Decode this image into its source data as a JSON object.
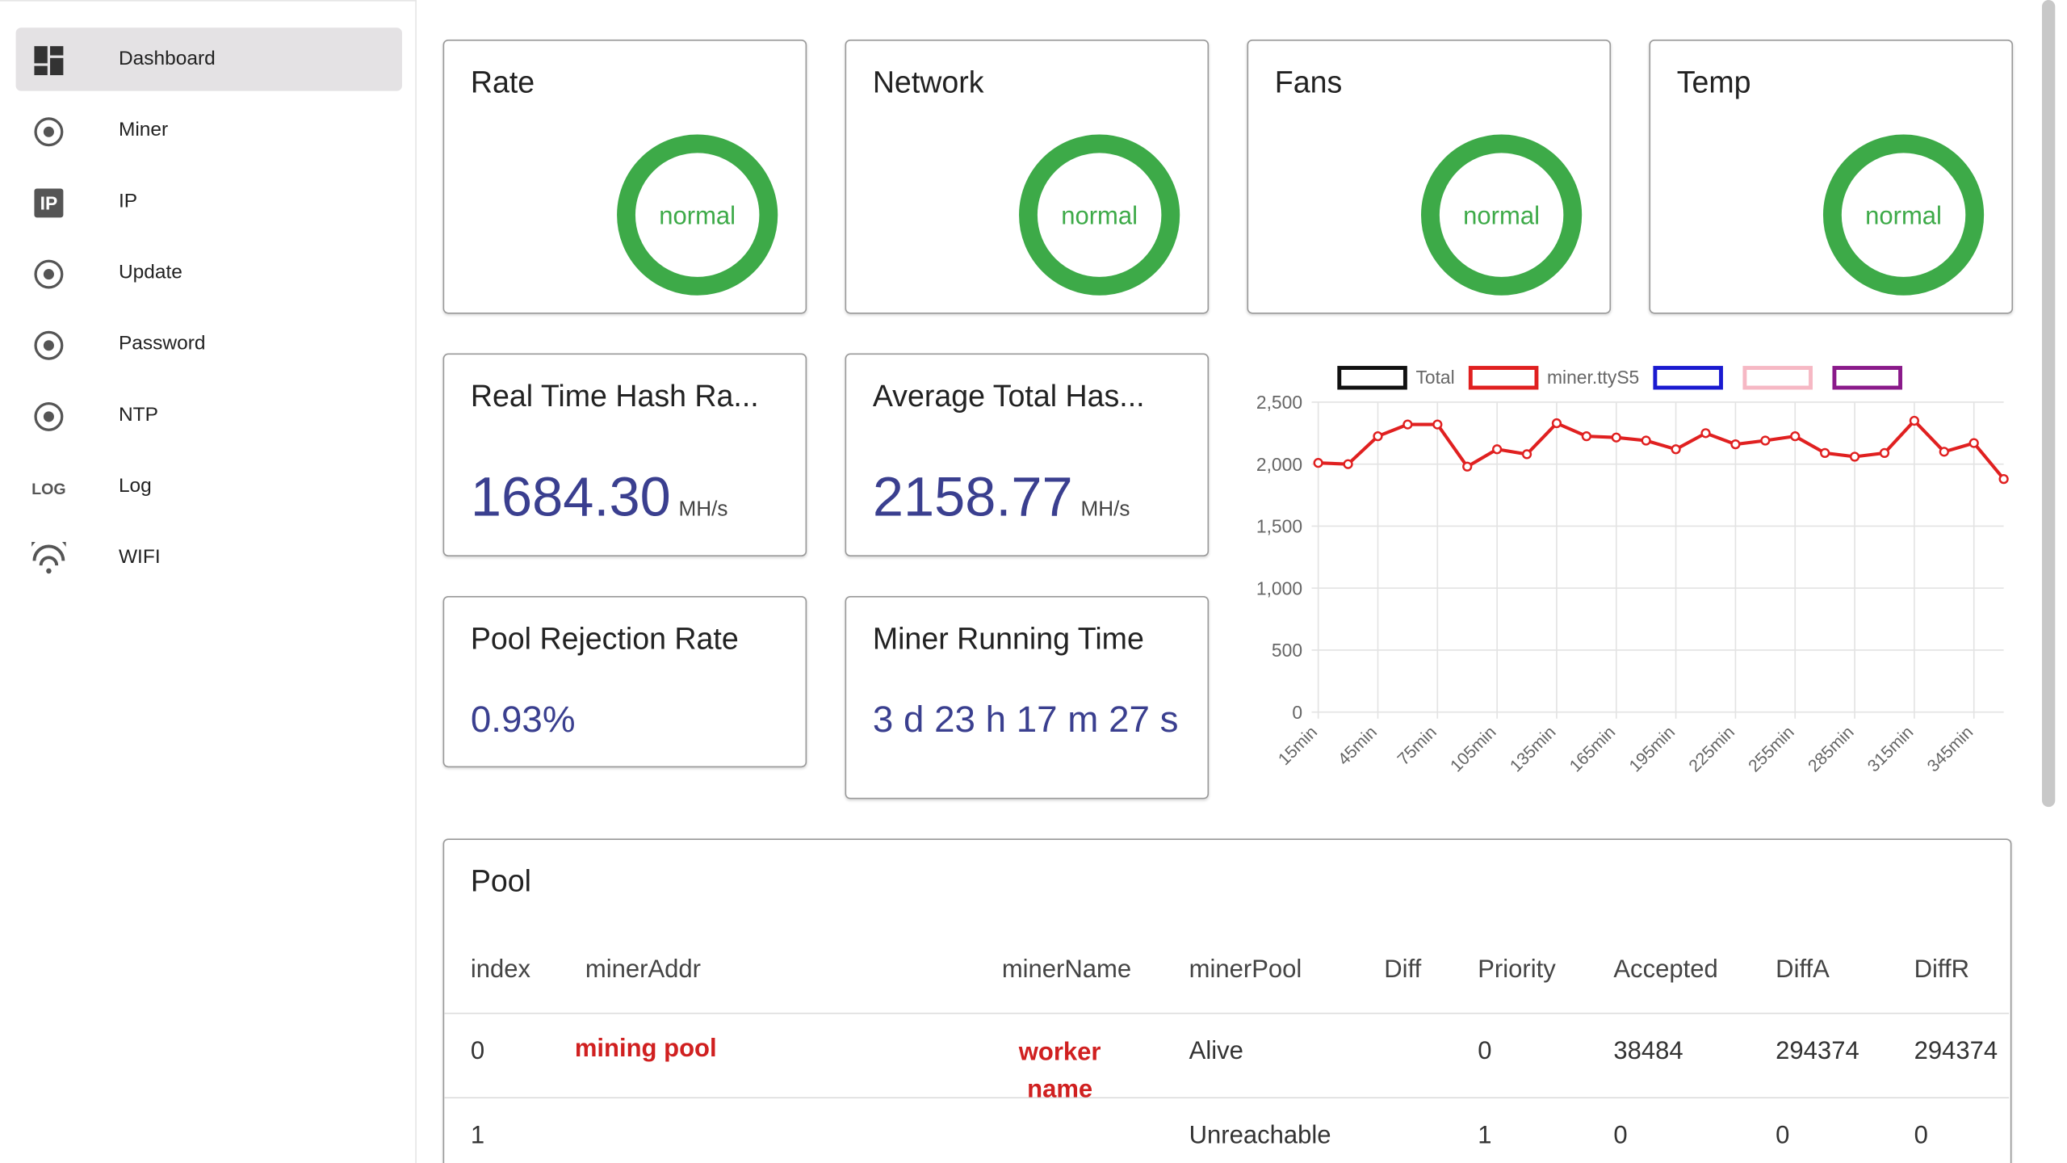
{
  "sidebar": {
    "items": [
      {
        "label": "Dashboard"
      },
      {
        "label": "Miner"
      },
      {
        "label": "IP",
        "icon_text": "IP"
      },
      {
        "label": "Update"
      },
      {
        "label": "Password"
      },
      {
        "label": "NTP"
      },
      {
        "label": "Log",
        "icon_text": "LOG"
      },
      {
        "label": "WIFI"
      }
    ]
  },
  "status_cards": [
    {
      "title": "Rate",
      "status": "normal"
    },
    {
      "title": "Network",
      "status": "normal"
    },
    {
      "title": "Fans",
      "status": "normal"
    },
    {
      "title": "Temp",
      "status": "normal"
    }
  ],
  "stat_cards": [
    {
      "title": "Real Time Hash Ra...",
      "value": "1684.30",
      "unit": "MH/s"
    },
    {
      "title": "Average Total Has...",
      "value": "2158.77",
      "unit": "MH/s"
    },
    {
      "title": "Pool Rejection Rate",
      "value": "0.93%"
    },
    {
      "title": "Miner Running Time",
      "value": "3 d 23 h 17 m 27 s"
    }
  ],
  "chart_data": {
    "type": "line",
    "legend": [
      {
        "name": "Total",
        "color": "#111111"
      },
      {
        "name": "miner.ttyS5",
        "color": "#e02020"
      },
      {
        "color": "#1a1ad0"
      },
      {
        "color": "#f6b8c4"
      },
      {
        "color": "#8a1a8a"
      }
    ],
    "categories": [
      "15min",
      null,
      "45min",
      null,
      "75min",
      null,
      "105min",
      null,
      "135min",
      null,
      "165min",
      null,
      "195min",
      null,
      "225min",
      null,
      "255min",
      null,
      "285min",
      null,
      "315min",
      null,
      "345min",
      null
    ],
    "series": [
      {
        "name": "miner.ttyS5",
        "color": "#e02020",
        "values": [
          2010,
          2000,
          2225,
          2320,
          2320,
          1980,
          2120,
          2080,
          2330,
          2225,
          2215,
          2190,
          2120,
          2250,
          2160,
          2190,
          2225,
          2090,
          2060,
          2090,
          2350,
          2100,
          2170,
          1880
        ]
      }
    ],
    "ylim": [
      0,
      2500
    ],
    "yticks": [
      0,
      500,
      {
        "value": 1000,
        "label": "1,000"
      },
      {
        "value": 1500,
        "label": "1,500"
      },
      {
        "value": 2000,
        "label": "2,000"
      },
      {
        "value": 2500,
        "label": "2,500"
      }
    ],
    "grid": true
  },
  "pool": {
    "title": "Pool",
    "columns": [
      "index",
      "minerAddr",
      "minerName",
      "minerPool",
      "Diff",
      "Priority",
      "Accepted",
      "DiffA",
      "DiffR"
    ],
    "rows": [
      {
        "index": "0",
        "minerAddr": "mining pool",
        "minerName": "worker name",
        "minerPool": "Alive",
        "Priority": "0",
        "Accepted": "38484",
        "DiffA": "294374",
        "DiffR": "294374"
      },
      {
        "index": "1",
        "minerPool": "Unreachable",
        "Priority": "1",
        "Accepted": "0",
        "DiffA": "0",
        "DiffR": "0"
      }
    ]
  }
}
